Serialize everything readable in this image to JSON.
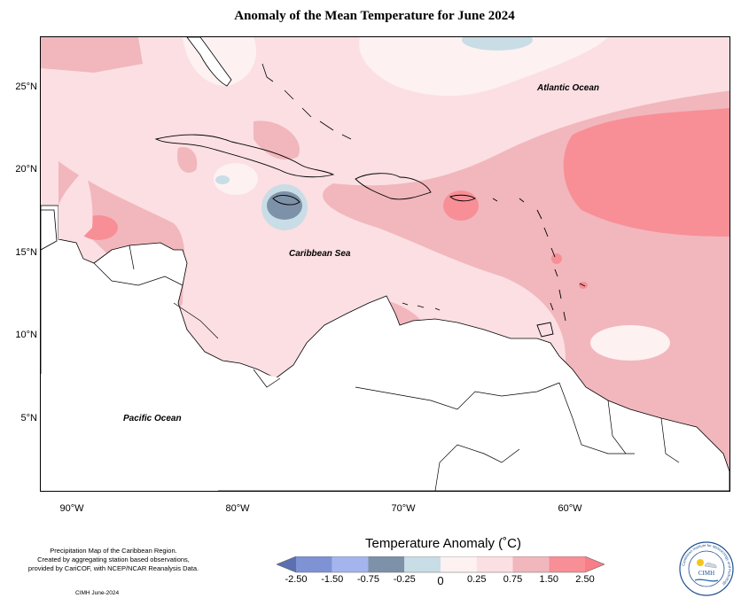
{
  "title": "Anomaly of the Mean Temperature for June 2024",
  "axes": {
    "y_ticks": [
      "25°N",
      "20°N",
      "15°N",
      "10°N",
      "5°N"
    ],
    "x_ticks": [
      "90°W",
      "80°W",
      "70°W",
      "60°W"
    ]
  },
  "labels": {
    "atlantic": "Atlantic Ocean",
    "caribbean": "Caribbean Sea",
    "pacific": "Pacific Ocean"
  },
  "legend": {
    "title": "Temperature Anomaly (˚C)",
    "ticks": [
      "-2.50",
      "-1.50",
      "-0.75",
      "-0.25",
      "0",
      "0.25",
      "0.75",
      "1.50",
      "2.50"
    ],
    "colors": [
      "#5c6fb0",
      "#7e92d4",
      "#a4b5ee",
      "#7d91a8",
      "#c9dde6",
      "#fdf1f1",
      "#fbdfe3",
      "#f1b7bd",
      "#f88f96",
      "#f87d87"
    ]
  },
  "credit": {
    "line1": "Precipitation Map of the Caribbean Region.",
    "line2": "Created by aggregating station based observations,",
    "line3": "provided by CariCOF, with NCEP/NCAR Reanalysis Data.",
    "date": "CIMH June-2024"
  },
  "logo": {
    "acronym": "CIMH",
    "ring_text": "Caribbean Institute for Meteorology and Hydrology"
  }
}
